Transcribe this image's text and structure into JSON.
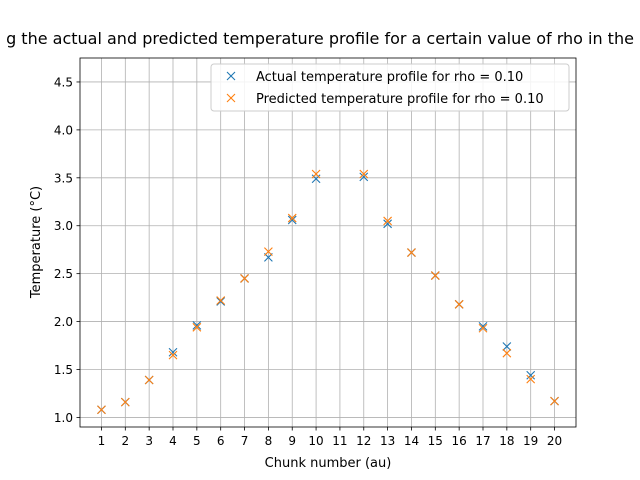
{
  "chart_data": {
    "type": "scatter",
    "title": "g the actual and predicted temperature profile for a certain value of rho in the",
    "xlabel": "Chunk number (au)",
    "ylabel": "Temperature (°C)",
    "xlim": [
      0.1,
      20.9
    ],
    "ylim": [
      0.9,
      4.75
    ],
    "xticks": [
      1,
      2,
      3,
      4,
      5,
      6,
      7,
      8,
      9,
      10,
      11,
      12,
      13,
      14,
      15,
      16,
      17,
      18,
      19,
      20
    ],
    "yticks": [
      1.0,
      1.5,
      2.0,
      2.5,
      3.0,
      3.5,
      4.0,
      4.5
    ],
    "ytick_labels": [
      "1.0",
      "1.5",
      "2.0",
      "2.5",
      "3.0",
      "3.5",
      "4.0",
      "4.5"
    ],
    "grid": true,
    "marker": "x",
    "legend_position": "top-right",
    "series": [
      {
        "name": "Actual temperature profile for rho = 0.10",
        "color": "#1f77b4",
        "x": [
          1,
          2,
          3,
          4,
          5,
          6,
          7,
          8,
          9,
          10,
          12,
          13,
          14,
          15,
          16,
          17,
          18,
          19,
          20
        ],
        "y": [
          1.08,
          1.16,
          1.39,
          1.68,
          1.96,
          2.21,
          2.45,
          2.67,
          3.06,
          3.49,
          3.51,
          3.02,
          2.72,
          2.48,
          2.18,
          1.95,
          1.74,
          1.44,
          1.17
        ]
      },
      {
        "name": "Predicted temperature profile for rho = 0.10",
        "color": "#ff7f0e",
        "x": [
          1,
          2,
          3,
          4,
          5,
          6,
          7,
          8,
          9,
          10,
          12,
          13,
          14,
          15,
          16,
          17,
          18,
          19,
          20
        ],
        "y": [
          1.08,
          1.16,
          1.39,
          1.65,
          1.94,
          2.22,
          2.45,
          2.73,
          3.08,
          3.54,
          3.54,
          3.05,
          2.72,
          2.48,
          2.18,
          1.93,
          1.67,
          1.4,
          1.17
        ]
      }
    ]
  }
}
